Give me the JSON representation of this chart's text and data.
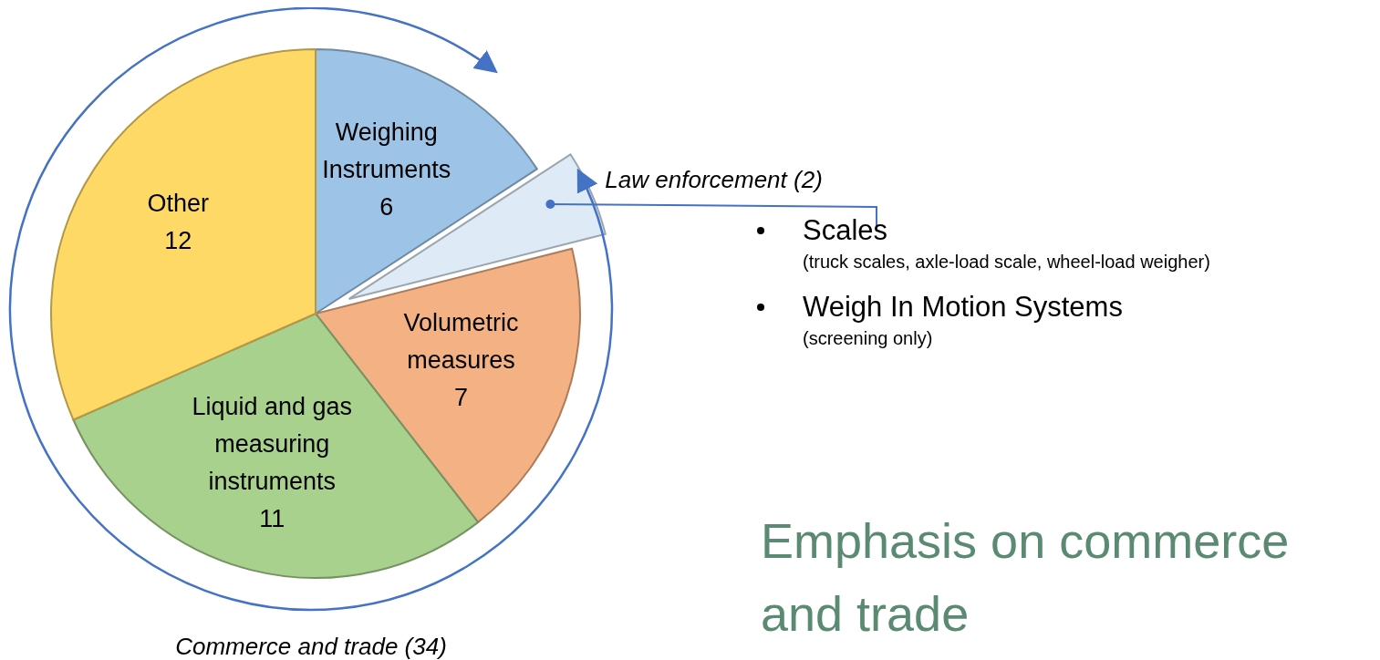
{
  "chart_data": {
    "type": "pie",
    "categories": [
      "Weighing Instruments",
      "Law enforcement",
      "Volumetric measures",
      "Liquid and gas measuring instruments",
      "Other"
    ],
    "values": [
      6,
      2,
      7,
      11,
      12
    ],
    "value_labels": [
      "6",
      "(2)",
      "7",
      "11",
      "12"
    ],
    "colors": [
      "#9dc3e6",
      "#deebf7",
      "#f4b183",
      "#a9d18e",
      "#ffd966"
    ],
    "legend": false,
    "annotations": [
      "Commerce and trade (34)",
      "Scales",
      "(truck scales, axle-load scale, wheel-load weigher)",
      "Weigh In Motion Systems",
      "(screening only)",
      "Emphasis on commerce and trade"
    ]
  }
}
